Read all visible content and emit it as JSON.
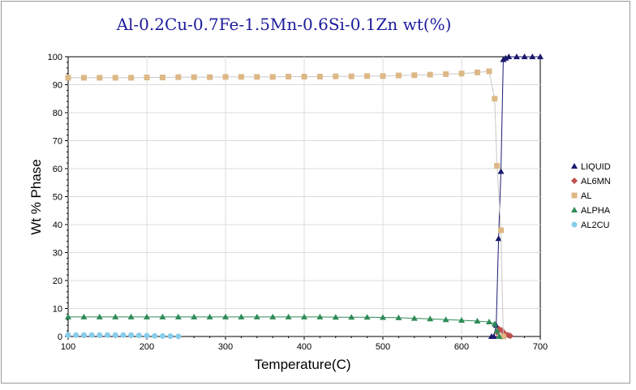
{
  "chart_data": {
    "type": "line",
    "title": "Al-0.2Cu-0.7Fe-1.5Mn-0.6Si-0.1Zn wt(%)",
    "xlabel": "Temperature(C)",
    "ylabel": "Wt % Phase",
    "xlim": [
      100,
      700
    ],
    "ylim": [
      0,
      100
    ],
    "xticks": [
      "100",
      "200",
      "300",
      "400",
      "500",
      "600",
      "700"
    ],
    "yticks": [
      "0",
      "10",
      "20",
      "30",
      "40",
      "50",
      "60",
      "70",
      "80",
      "90",
      "100"
    ],
    "grid": true,
    "legend_position": "right",
    "series": [
      {
        "name": "LIQUID",
        "color": "#1a1a6e",
        "marker": "triangle",
        "line": true,
        "x": [
          638,
          641,
          644,
          647,
          650,
          653,
          656,
          660,
          670,
          680,
          690,
          700
        ],
        "y": [
          0,
          0,
          4,
          35,
          59,
          99,
          99.5,
          100,
          100,
          100,
          100,
          100
        ]
      },
      {
        "name": "AL6MN",
        "color": "#c0504d",
        "marker": "diamond",
        "line": false,
        "x": [
          645,
          648,
          651,
          655,
          659,
          662
        ],
        "y": [
          1.5,
          2.6,
          2.2,
          1.0,
          0.5,
          0.2
        ]
      },
      {
        "name": "AL",
        "color": "#ddb886",
        "marker": "square",
        "line": true,
        "x": [
          100,
          120,
          140,
          160,
          180,
          200,
          220,
          240,
          260,
          280,
          300,
          320,
          340,
          360,
          380,
          400,
          420,
          440,
          460,
          480,
          500,
          520,
          540,
          560,
          580,
          600,
          620,
          635,
          642,
          645,
          650,
          653
        ],
        "y": [
          92.5,
          92.5,
          92.5,
          92.5,
          92.5,
          92.6,
          92.6,
          92.7,
          92.7,
          92.7,
          92.8,
          92.8,
          92.8,
          92.8,
          92.9,
          92.9,
          92.9,
          93.0,
          93.0,
          93.1,
          93.1,
          93.3,
          93.4,
          93.6,
          93.8,
          94.0,
          94.4,
          94.8,
          85,
          61,
          38,
          0
        ]
      },
      {
        "name": "ALPHA",
        "color": "#2e8b57",
        "marker": "triangle",
        "line": true,
        "x": [
          100,
          120,
          140,
          160,
          180,
          200,
          220,
          240,
          260,
          280,
          300,
          320,
          340,
          360,
          380,
          400,
          420,
          440,
          460,
          480,
          500,
          520,
          540,
          560,
          580,
          600,
          620,
          635,
          642,
          645,
          648
        ],
        "y": [
          7.0,
          7.0,
          7.0,
          7.0,
          7.0,
          7.0,
          7.0,
          7.0,
          7.0,
          7.0,
          7.0,
          7.0,
          7.0,
          7.0,
          7.0,
          7.0,
          7.0,
          6.9,
          6.9,
          6.9,
          6.8,
          6.7,
          6.5,
          6.3,
          6.0,
          5.8,
          5.5,
          5.2,
          4.5,
          2.0,
          0.0
        ]
      },
      {
        "name": "AL2CU",
        "color": "#87ceeb",
        "marker": "circle",
        "line": false,
        "x": [
          100,
          110,
          120,
          130,
          140,
          150,
          160,
          170,
          180,
          190,
          200,
          210,
          220,
          230,
          240
        ],
        "y": [
          0.5,
          0.5,
          0.5,
          0.5,
          0.5,
          0.5,
          0.5,
          0.5,
          0.5,
          0.4,
          0.3,
          0.2,
          0.15,
          0.1,
          0.05
        ]
      }
    ]
  }
}
